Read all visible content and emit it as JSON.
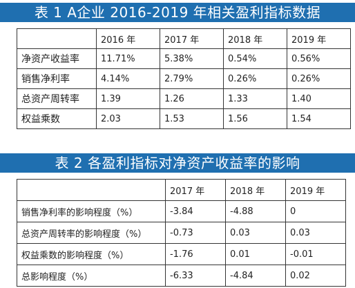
{
  "table1": {
    "title": "表 1 A企业 2016-2019 年相关盈利指标数据",
    "headers": [
      "",
      "2016 年",
      "2017 年",
      "2018 年",
      "2019 年"
    ],
    "rows": [
      [
        "净资产收益率",
        "11.71%",
        "5.38%",
        "0.54%",
        "0.56%"
      ],
      [
        "销售净利率",
        "4.14%",
        "2.79%",
        "0.26%",
        "0.26%"
      ],
      [
        "总资产周转率",
        "1.39",
        "1.26",
        "1.33",
        "1.40"
      ],
      [
        "权益乘数",
        "2.03",
        "1.53",
        "1.56",
        "1.54"
      ]
    ]
  },
  "table2": {
    "title": "表 2 各盈利指标对净资产收益率的影响",
    "headers": [
      "",
      "2017 年",
      "2018 年",
      "2019 年"
    ],
    "rows": [
      [
        "销售净利率的影响程度（%）",
        "-3.84",
        "-4.88",
        "0"
      ],
      [
        "总资产周转率的影响程度（%）",
        "-0.73",
        "0.03",
        "0.03"
      ],
      [
        "权益乘数的影响程度（%）",
        "-1.76",
        "0.01",
        "-0.01"
      ],
      [
        "总影响程度（%）",
        "-6.33",
        "-4.84",
        "0.02"
      ]
    ]
  }
}
